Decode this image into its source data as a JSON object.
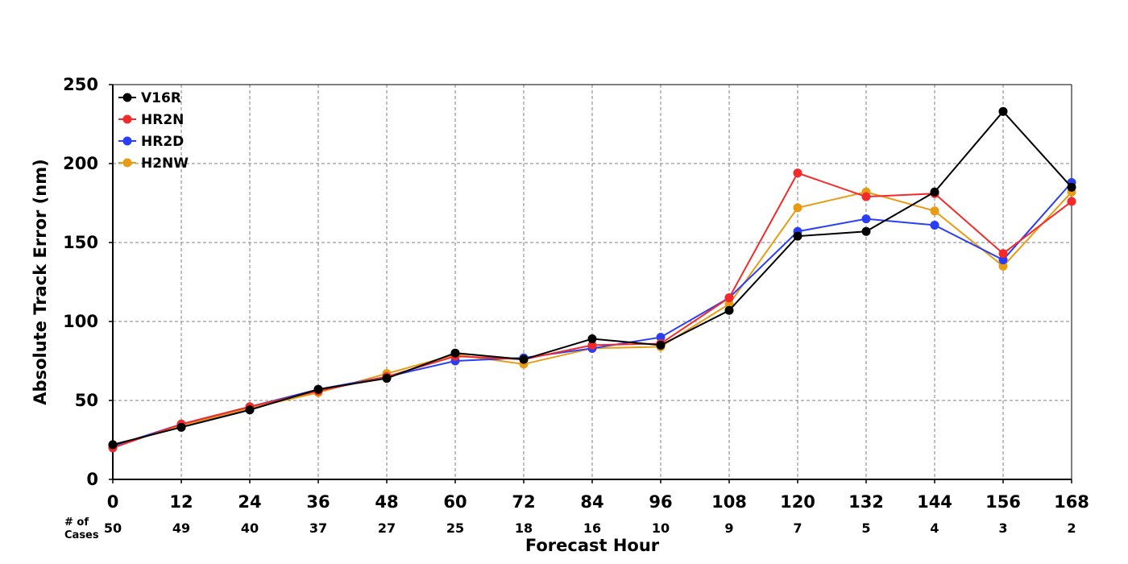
{
  "chart_data": {
    "type": "line",
    "title": "",
    "xlabel": "Forecast Hour",
    "ylabel": "Absolute Track Error (nm)",
    "x": [
      0,
      12,
      24,
      36,
      48,
      60,
      72,
      84,
      96,
      108,
      120,
      132,
      144,
      156,
      168
    ],
    "xlim": [
      0,
      168
    ],
    "ylim": [
      0,
      250
    ],
    "yticks": [
      0,
      50,
      100,
      150,
      200,
      250
    ],
    "grid": true,
    "legend_position": "top-left",
    "cases_label": [
      "# of",
      "Cases"
    ],
    "cases": [
      50,
      49,
      40,
      37,
      27,
      25,
      18,
      16,
      10,
      9,
      7,
      5,
      4,
      3,
      2
    ],
    "series": [
      {
        "name": "V16R",
        "color": "#000000",
        "values": [
          22,
          33,
          44,
          57,
          64,
          80,
          76,
          89,
          85,
          107,
          154,
          157,
          182,
          233,
          185
        ]
      },
      {
        "name": "HR2N",
        "color": "#f42a2a",
        "values": [
          20,
          35,
          46,
          56,
          65,
          78,
          76,
          85,
          86,
          115,
          194,
          179,
          181,
          143,
          176
        ]
      },
      {
        "name": "HR2D",
        "color": "#2a3ff5",
        "values": [
          21,
          35,
          46,
          57,
          65,
          75,
          77,
          83,
          90,
          115,
          157,
          165,
          161,
          139,
          188
        ]
      },
      {
        "name": "H2NW",
        "color": "#e79c14",
        "values": [
          21,
          34,
          45,
          55,
          67,
          79,
          73,
          83,
          84,
          111,
          172,
          182,
          170,
          135,
          182
        ]
      }
    ]
  }
}
